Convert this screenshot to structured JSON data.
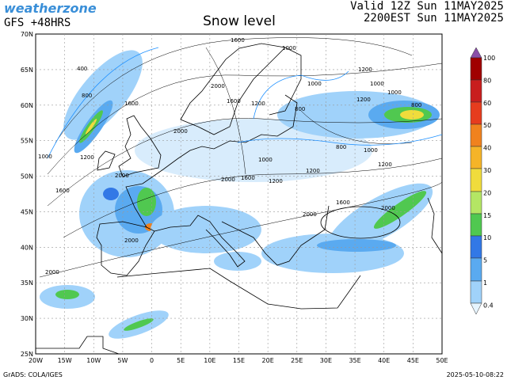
{
  "header": {
    "brand": "weatherzone",
    "model": "GFS +48HRS",
    "title": "Snow level",
    "valid": "Valid 12Z Sun 11MAY2025",
    "local": "2200EST Sun 11MAY2025"
  },
  "lat_labels": [
    "70N",
    "65N",
    "60N",
    "55N",
    "50N",
    "45N",
    "40N",
    "35N",
    "30N",
    "25N"
  ],
  "lon_labels": [
    "20W",
    "15W",
    "10W",
    "5W",
    "0",
    "5E",
    "10E",
    "15E",
    "20E",
    "25E",
    "30E",
    "35E",
    "40E",
    "45E",
    "50E"
  ],
  "colorbar_labels": [
    "100",
    "80",
    "60",
    "50",
    "40",
    "30",
    "20",
    "15",
    "10",
    "5",
    "1",
    "0.4"
  ],
  "contour_labels": [
    "1600",
    "1000",
    "1000",
    "1200",
    "1000",
    "1000",
    "1200",
    "800",
    "400",
    "800",
    "1600",
    "2000",
    "1600",
    "1200",
    "800",
    "2000",
    "800",
    "1000",
    "1200",
    "1000",
    "1200",
    "1000",
    "1200",
    "2000",
    "2000",
    "1600",
    "1200",
    "1600",
    "1600",
    "2000",
    "2000",
    "2000",
    "2000"
  ],
  "footer": {
    "credit": "GrADS: COLA/IGES",
    "timestamp": "2025-05-10-08:22"
  }
}
